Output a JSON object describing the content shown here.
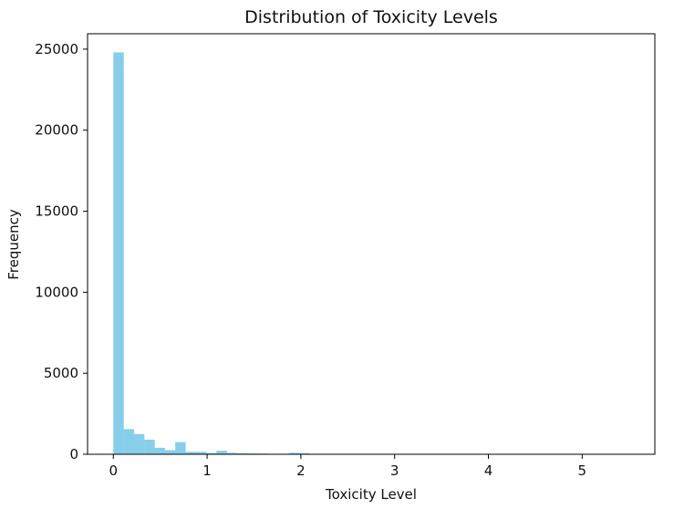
{
  "chart_data": {
    "type": "bar",
    "title": "Distribution of Toxicity Levels",
    "xlabel": "Toxicity Level",
    "ylabel": "Frequency",
    "xlim": [
      -0.275,
      5.775
    ],
    "ylim": [
      0,
      25950
    ],
    "x_ticks": [
      0,
      1,
      2,
      3,
      4,
      5
    ],
    "y_ticks": [
      0,
      5000,
      10000,
      15000,
      20000,
      25000
    ],
    "bin_width": 0.11,
    "bin_starts": [
      0.0,
      0.11,
      0.22,
      0.33,
      0.44,
      0.55,
      0.66,
      0.77,
      0.88,
      0.99,
      1.1,
      1.21,
      1.32,
      1.43,
      1.54,
      1.65,
      1.76,
      1.87,
      1.98,
      2.09,
      2.2,
      2.31,
      2.42,
      2.53,
      2.64,
      2.75,
      2.86,
      2.97,
      3.08,
      3.19,
      3.3,
      3.41,
      3.52,
      3.63,
      3.74,
      3.85,
      3.96,
      4.07,
      4.18,
      4.29,
      4.4,
      4.51,
      4.62,
      4.73,
      4.84,
      4.95,
      5.06,
      5.17,
      5.28,
      5.39
    ],
    "values": [
      24800,
      1550,
      1250,
      900,
      400,
      250,
      750,
      150,
      150,
      80,
      220,
      90,
      60,
      50,
      40,
      20,
      20,
      90,
      60,
      10,
      8,
      5,
      5,
      3,
      3,
      3,
      2,
      2,
      2,
      1,
      1,
      1,
      1,
      1,
      0,
      0,
      0,
      0,
      0,
      0,
      0,
      0,
      0,
      0,
      0,
      0,
      0,
      0,
      0,
      0
    ],
    "bar_color": "#87ceeb",
    "grid": false,
    "legend": false
  }
}
